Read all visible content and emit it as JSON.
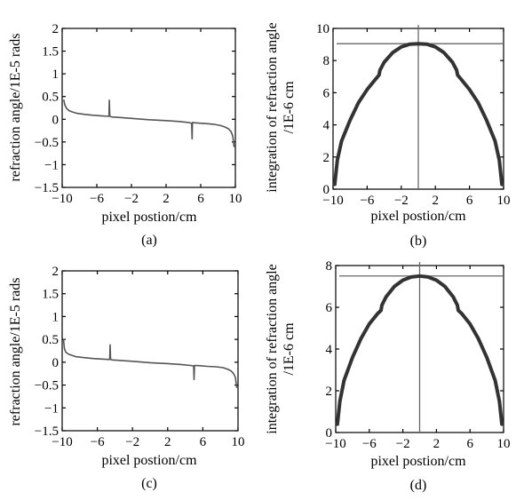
{
  "chart_data": [
    {
      "type": "line",
      "panel": "a",
      "caption": "(a)",
      "xlabel": "pixel postion/cm",
      "ylabel": "refraction angle/1E-5 rads",
      "xlim": [
        -10,
        10
      ],
      "ylim": [
        -1.5,
        2
      ],
      "xticks": [
        -10,
        -6,
        -2,
        2,
        6,
        10
      ],
      "yticks": [
        -1.5,
        -1,
        -0.5,
        0,
        0.5,
        1,
        1.5,
        2
      ],
      "xtick_labels": [
        "−10",
        "−6",
        "−2",
        "2",
        "6",
        "10"
      ],
      "ytick_labels": [
        "−1.5",
        "−1",
        "−0.5",
        "0",
        "0.5",
        "1",
        "1.5",
        "2"
      ],
      "series": [
        {
          "color": "#555555",
          "x": [
            -9.8,
            -9.7,
            -9.5,
            -9.2,
            -8.8,
            -8.3,
            -7.5,
            -6.5,
            -5.5,
            -4.6,
            -4.55,
            -4.5,
            -4.45,
            -4.4,
            -4.3,
            -3.5,
            -2,
            0,
            2,
            3.5,
            4.6,
            4.95,
            5.0,
            5.05,
            5.1,
            5.5,
            6.5,
            7.5,
            8.3,
            8.8,
            9.2,
            9.5,
            9.7,
            9.85
          ],
          "y": [
            0.42,
            0.32,
            0.24,
            0.19,
            0.16,
            0.13,
            0.11,
            0.09,
            0.075,
            0.065,
            0.42,
            0.07,
            0.065,
            0.06,
            0.05,
            0.04,
            0.02,
            -0.01,
            -0.03,
            -0.05,
            -0.07,
            -0.09,
            -0.43,
            -0.07,
            -0.075,
            -0.08,
            -0.095,
            -0.11,
            -0.14,
            -0.17,
            -0.21,
            -0.27,
            -0.37,
            -0.6
          ]
        }
      ]
    },
    {
      "type": "line",
      "panel": "b",
      "caption": "(b)",
      "xlabel": "pixel postion/cm",
      "ylabel": "integration of refraction angle\n/1E-6 cm",
      "xlim": [
        -10,
        10
      ],
      "ylim": [
        0,
        10
      ],
      "xticks": [
        -10,
        -6,
        -2,
        2,
        6,
        10
      ],
      "yticks": [
        0,
        2,
        4,
        6,
        8,
        10
      ],
      "xtick_labels": [
        "−10",
        "−6",
        "−2",
        "2",
        "6",
        "10"
      ],
      "ytick_labels": [
        "0",
        "2",
        "4",
        "6",
        "8",
        "10"
      ],
      "reference_lines": {
        "hline": 9.05,
        "vline": 0
      },
      "series": [
        {
          "color": "#333333",
          "x": [
            -9.8,
            -9.5,
            -9,
            -8,
            -7,
            -6,
            -5,
            -4.6,
            -4.5,
            -4,
            -3,
            -2,
            -1,
            0,
            1,
            2,
            3,
            4,
            4.5,
            4.6,
            5,
            6,
            7,
            8,
            9,
            9.5,
            9.8
          ],
          "y": [
            0.3,
            1.8,
            3.0,
            4.3,
            5.4,
            6.2,
            6.85,
            7.1,
            7.4,
            7.9,
            8.5,
            8.85,
            9.02,
            9.05,
            9.02,
            8.85,
            8.5,
            7.9,
            7.4,
            7.1,
            6.85,
            6.2,
            5.4,
            4.3,
            3.0,
            1.8,
            0.3
          ]
        }
      ]
    },
    {
      "type": "line",
      "panel": "c",
      "caption": "(c)",
      "xlabel": "pixel postion/cm",
      "ylabel": "refraction angle/1E-5 rads",
      "xlim": [
        -10,
        10
      ],
      "ylim": [
        -1.5,
        2
      ],
      "xticks": [
        -10,
        -6,
        -2,
        2,
        6,
        10
      ],
      "yticks": [
        -1.5,
        -1,
        -0.5,
        0,
        0.5,
        1,
        1.5,
        2
      ],
      "xtick_labels": [
        "−10",
        "−6",
        "−2",
        "2",
        "6",
        "10"
      ],
      "ytick_labels": [
        "−1.5",
        "−1",
        "−0.5",
        "0",
        "0.5",
        "1",
        "1.5",
        "2"
      ],
      "series": [
        {
          "color": "#555555",
          "x": [
            -9.85,
            -9.75,
            -9.6,
            -9.3,
            -8.9,
            -8.4,
            -7.5,
            -6.5,
            -5.5,
            -4.6,
            -4.55,
            -4.5,
            -4.45,
            -4.4,
            -4.3,
            -3.5,
            -2,
            0,
            2,
            3.5,
            4.6,
            4.95,
            5.0,
            5.05,
            5.1,
            5.5,
            6.5,
            7.5,
            8.3,
            8.8,
            9.2,
            9.5,
            9.7,
            9.85
          ],
          "y": [
            0.5,
            0.3,
            0.22,
            0.18,
            0.15,
            0.12,
            0.1,
            0.08,
            0.07,
            0.06,
            0.38,
            0.07,
            0.06,
            0.055,
            0.05,
            0.04,
            0.02,
            -0.01,
            -0.03,
            -0.05,
            -0.07,
            -0.08,
            -0.38,
            -0.07,
            -0.07,
            -0.075,
            -0.09,
            -0.1,
            -0.12,
            -0.15,
            -0.19,
            -0.25,
            -0.33,
            -0.55
          ]
        }
      ]
    },
    {
      "type": "line",
      "panel": "d",
      "caption": "(d)",
      "xlabel": "pixel postion/cm",
      "ylabel": "integration of refraction angle\n/1E-6 cm",
      "xlim": [
        -10,
        10
      ],
      "ylim": [
        0,
        8
      ],
      "xticks": [
        -10,
        -6,
        -2,
        2,
        6,
        10
      ],
      "yticks": [
        0,
        2,
        4,
        6,
        8
      ],
      "xtick_labels": [
        "−10",
        "−6",
        "−2",
        "2",
        "6",
        "10"
      ],
      "ytick_labels": [
        "0",
        "2",
        "4",
        "6",
        "8"
      ],
      "reference_lines": {
        "hline": 7.5,
        "vline": 0
      },
      "series": [
        {
          "color": "#333333",
          "x": [
            -9.8,
            -9.5,
            -9,
            -8,
            -7,
            -6,
            -5,
            -4.6,
            -4.5,
            -4,
            -3,
            -2,
            -1,
            0,
            1,
            2,
            3,
            4,
            4.5,
            4.6,
            5,
            6,
            7,
            8,
            9,
            9.5,
            9.8
          ],
          "y": [
            0.4,
            1.5,
            2.5,
            3.6,
            4.5,
            5.2,
            5.7,
            5.85,
            6.1,
            6.5,
            7.0,
            7.3,
            7.45,
            7.5,
            7.45,
            7.3,
            7.0,
            6.5,
            6.1,
            5.85,
            5.7,
            5.2,
            4.5,
            3.6,
            2.5,
            1.5,
            0.4
          ]
        }
      ]
    }
  ]
}
